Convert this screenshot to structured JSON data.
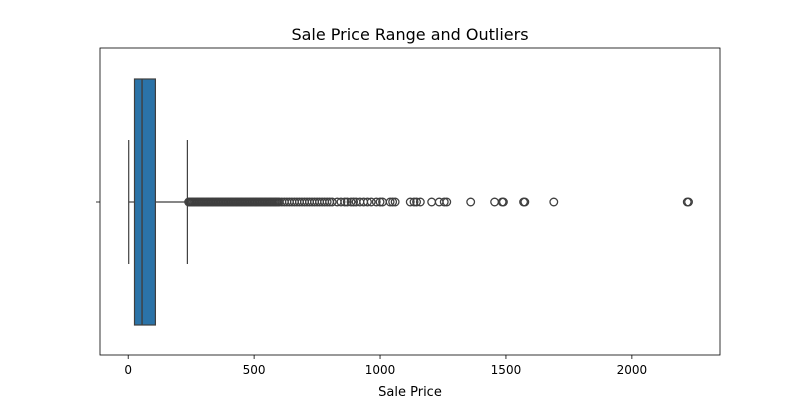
{
  "chart_data": {
    "type": "boxplot",
    "orientation": "horizontal",
    "title": "Sale Price Range and Outliers",
    "xlabel": "Sale Price",
    "ylabel": "",
    "xlim": [
      -112,
      2350
    ],
    "xticks": [
      0,
      500,
      1000,
      1500,
      2000
    ],
    "grid": false,
    "legend": "none",
    "box": {
      "whisker_low": 2,
      "q1": 25,
      "median": 55,
      "q3": 108,
      "whisker_high": 235,
      "color": "#2b73a8"
    },
    "outliers": [
      240,
      245,
      250,
      255,
      260,
      265,
      270,
      275,
      280,
      285,
      290,
      295,
      300,
      305,
      310,
      315,
      320,
      325,
      330,
      335,
      340,
      345,
      350,
      355,
      360,
      365,
      370,
      375,
      380,
      385,
      390,
      395,
      400,
      405,
      410,
      415,
      420,
      425,
      430,
      435,
      440,
      445,
      450,
      455,
      460,
      465,
      470,
      475,
      480,
      485,
      490,
      495,
      500,
      505,
      510,
      515,
      520,
      525,
      530,
      535,
      540,
      545,
      550,
      555,
      560,
      565,
      570,
      575,
      580,
      585,
      590,
      595,
      600,
      610,
      620,
      630,
      640,
      650,
      660,
      670,
      680,
      690,
      700,
      710,
      720,
      730,
      740,
      750,
      760,
      770,
      780,
      790,
      800,
      810,
      830,
      845,
      860,
      870,
      885,
      895,
      905,
      920,
      935,
      950,
      965,
      985,
      1000,
      1010,
      1040,
      1050,
      1060,
      1120,
      1135,
      1145,
      1160,
      1205,
      1235,
      1255,
      1265,
      1360,
      1455,
      1485,
      1490,
      1570,
      1575,
      1690,
      2220,
      2225
    ]
  }
}
